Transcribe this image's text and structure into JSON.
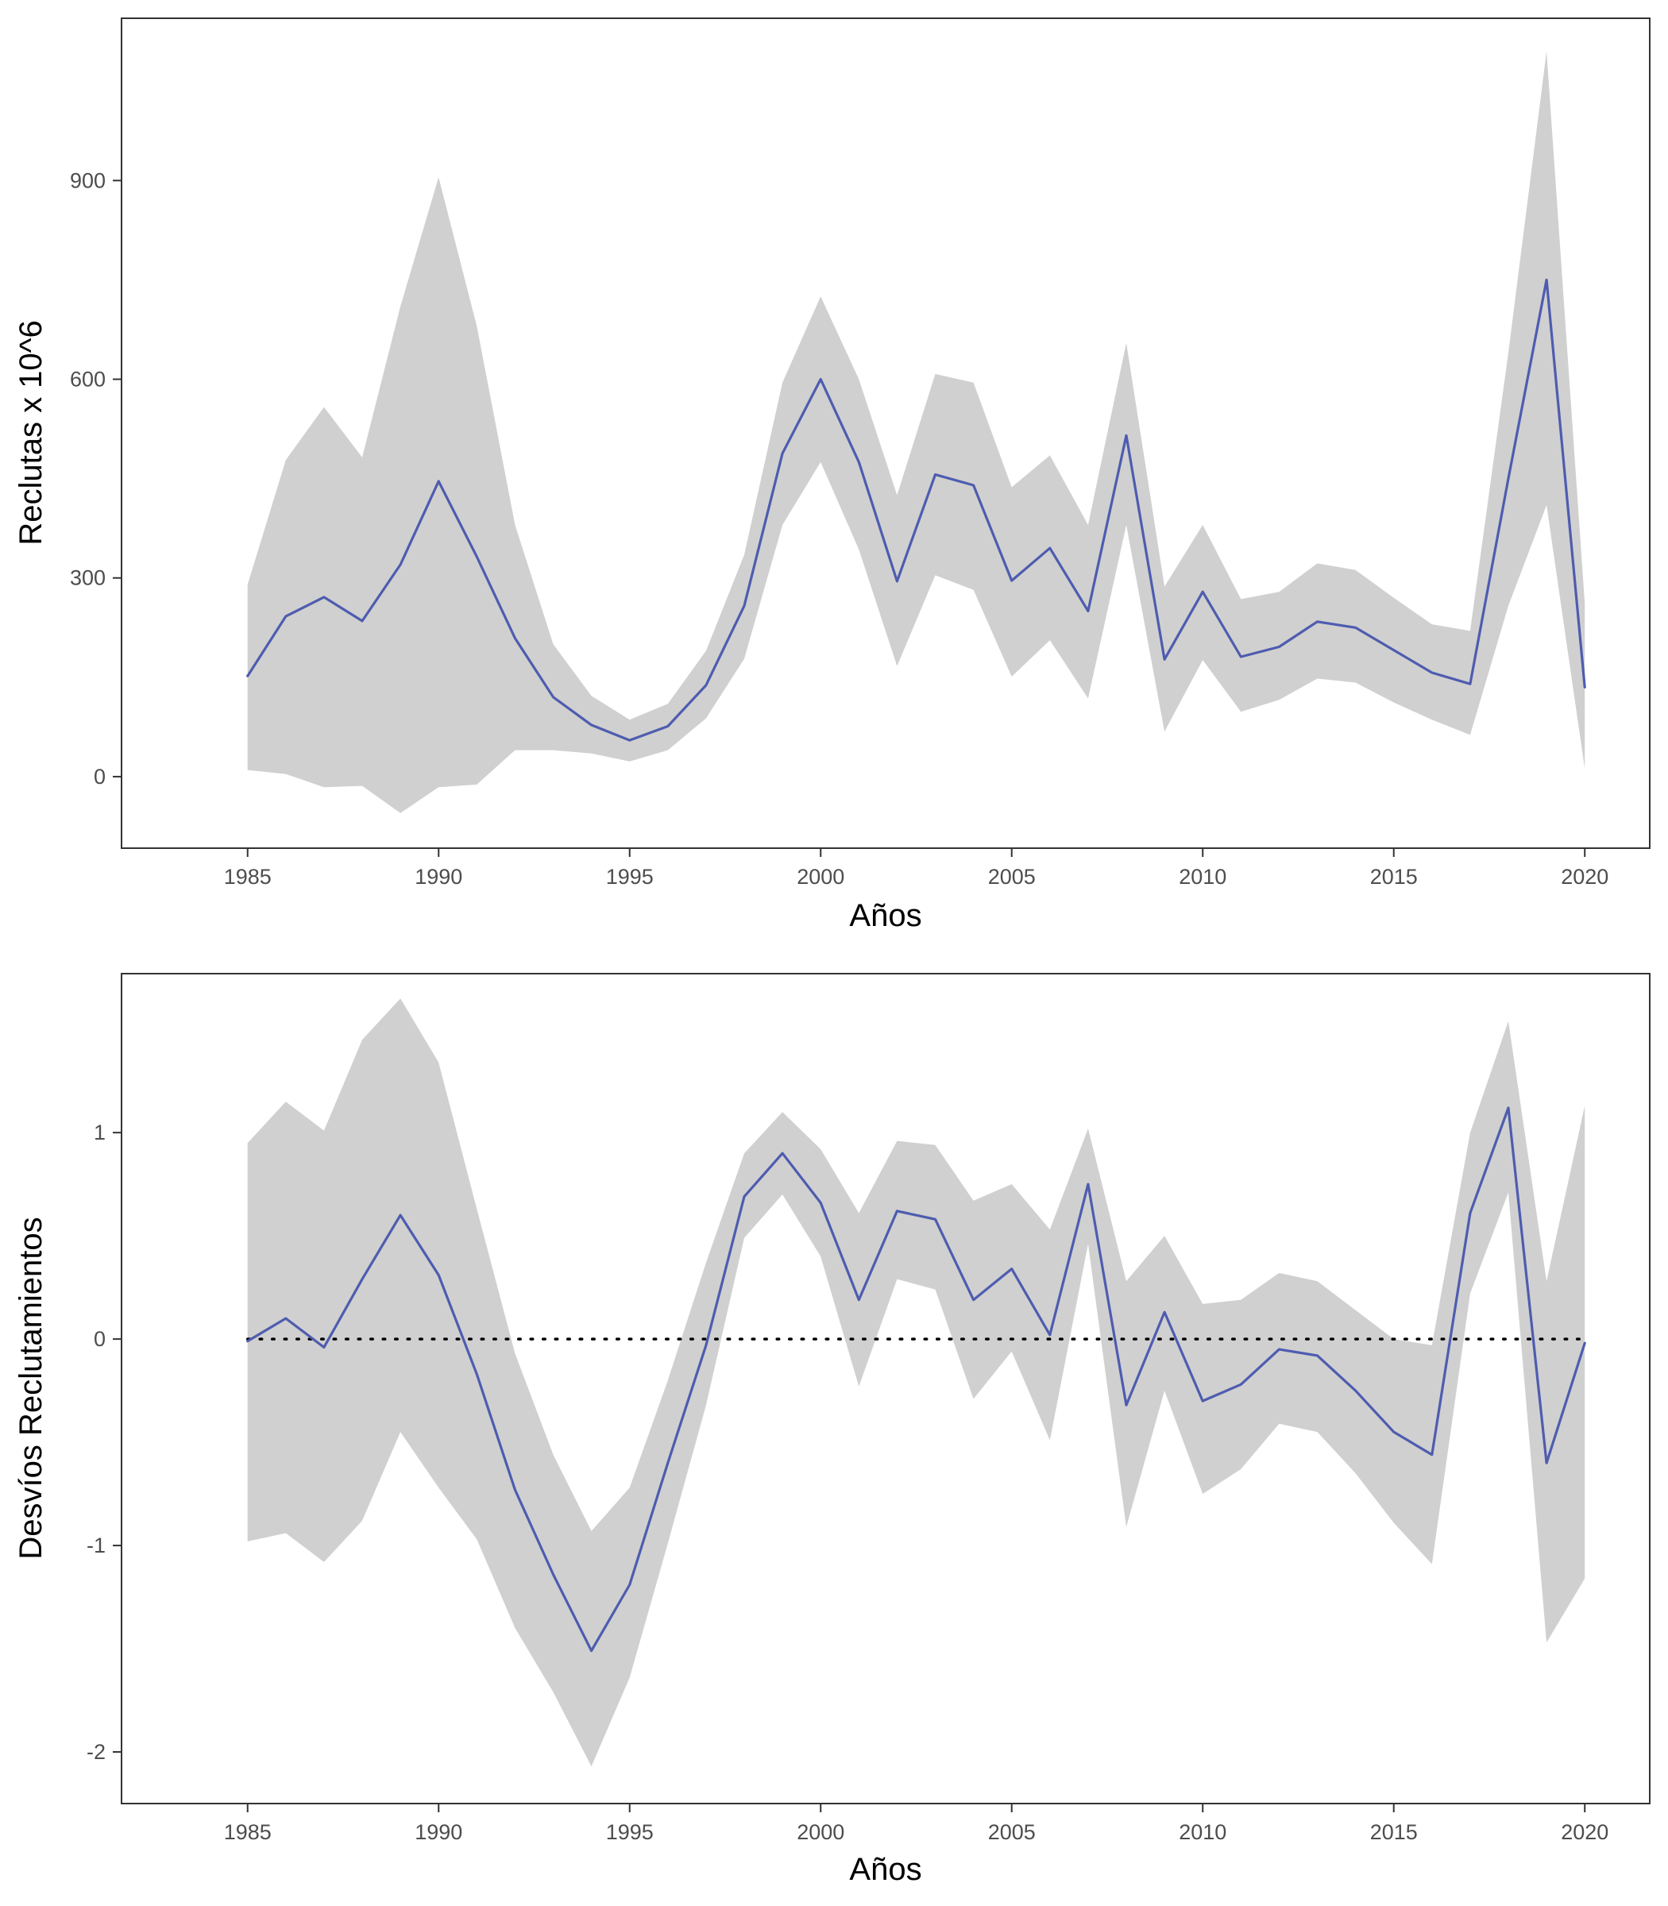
{
  "colors": {
    "line": "#4e5caf",
    "ribbon": "#d0d0d0",
    "axis": "#333333"
  },
  "chart_data": [
    {
      "type": "area",
      "xlabel": "Años",
      "ylabel": "Reclutas x 10^6",
      "x": [
        1985,
        1986,
        1987,
        1988,
        1989,
        1990,
        1991,
        1992,
        1993,
        1994,
        1995,
        1996,
        1997,
        1998,
        1999,
        2000,
        2001,
        2002,
        2003,
        2004,
        2005,
        2006,
        2007,
        2008,
        2009,
        2010,
        2011,
        2012,
        2013,
        2014,
        2015,
        2016,
        2017,
        2018,
        2019,
        2020
      ],
      "xlim": [
        1981.7,
        2021.7
      ],
      "x_ticks": [
        1985,
        1990,
        1995,
        2000,
        2005,
        2010,
        2015,
        2020
      ],
      "ylim": [
        -108,
        1145
      ],
      "y_ticks": [
        0,
        300,
        600,
        900
      ],
      "grid": false,
      "series": [
        {
          "values": [
            152,
            242,
            271,
            235,
            320,
            446,
            332,
            209,
            120,
            78,
            55,
            76,
            138,
            258,
            488,
            600,
            475,
            295,
            456,
            440,
            296,
            345,
            250,
            515,
            177,
            279,
            181,
            196,
            234,
            225,
            191,
            157,
            140,
            450,
            750,
            135
          ],
          "lower": [
            10,
            4,
            -16,
            -14,
            -55,
            -16,
            -12,
            40,
            40,
            35,
            23,
            40,
            88,
            178,
            380,
            475,
            343,
            167,
            304,
            282,
            151,
            206,
            118,
            380,
            68,
            176,
            98,
            116,
            148,
            142,
            112,
            86,
            63,
            258,
            410,
            12
          ],
          "upper": [
            290,
            478,
            558,
            482,
            710,
            905,
            680,
            380,
            200,
            122,
            86,
            110,
            190,
            335,
            595,
            725,
            600,
            425,
            608,
            595,
            437,
            485,
            380,
            655,
            287,
            380,
            268,
            279,
            322,
            312,
            270,
            230,
            220,
            640,
            1095,
            262
          ]
        }
      ]
    },
    {
      "type": "area",
      "xlabel": "Años",
      "ylabel": "Desvíos Reclutamientos",
      "x": [
        1985,
        1986,
        1987,
        1988,
        1989,
        1990,
        1991,
        1992,
        1993,
        1994,
        1995,
        1996,
        1997,
        1998,
        1999,
        2000,
        2001,
        2002,
        2003,
        2004,
        2005,
        2006,
        2007,
        2008,
        2009,
        2010,
        2011,
        2012,
        2013,
        2014,
        2015,
        2016,
        2017,
        2018,
        2019,
        2020
      ],
      "xlim": [
        1981.7,
        2021.7
      ],
      "x_ticks": [
        1985,
        1990,
        1995,
        2000,
        2005,
        2010,
        2015,
        2020
      ],
      "ylim": [
        -2.25,
        1.77
      ],
      "y_ticks": [
        -2,
        -1,
        0,
        1
      ],
      "reference_line": 0,
      "grid": false,
      "series": [
        {
          "values": [
            -0.01,
            0.1,
            -0.04,
            0.29,
            0.6,
            0.31,
            -0.17,
            -0.73,
            -1.14,
            -1.51,
            -1.19,
            -0.6,
            -0.03,
            0.69,
            0.9,
            0.66,
            0.19,
            0.62,
            0.58,
            0.19,
            0.34,
            0.02,
            0.75,
            -0.32,
            0.13,
            -0.3,
            -0.22,
            -0.05,
            -0.08,
            -0.25,
            -0.45,
            -0.56,
            0.61,
            1.12,
            -0.6,
            -0.02
          ],
          "lower": [
            -0.98,
            -0.94,
            -1.08,
            -0.88,
            -0.45,
            -0.72,
            -0.97,
            -1.4,
            -1.71,
            -2.07,
            -1.64,
            -0.99,
            -0.32,
            0.49,
            0.7,
            0.4,
            -0.23,
            0.29,
            0.24,
            -0.29,
            -0.06,
            -0.49,
            0.46,
            -0.91,
            -0.25,
            -0.75,
            -0.63,
            -0.41,
            -0.45,
            -0.65,
            -0.89,
            -1.09,
            0.22,
            0.71,
            -1.47,
            -1.16
          ],
          "upper": [
            0.95,
            1.15,
            1.01,
            1.45,
            1.65,
            1.34,
            0.63,
            -0.07,
            -0.56,
            -0.93,
            -0.72,
            -0.2,
            0.37,
            0.9,
            1.1,
            0.92,
            0.61,
            0.96,
            0.94,
            0.67,
            0.75,
            0.53,
            1.02,
            0.28,
            0.5,
            0.17,
            0.19,
            0.32,
            0.28,
            0.14,
            0.0,
            -0.03,
            1.0,
            1.54,
            0.28,
            1.13
          ]
        }
      ]
    }
  ]
}
